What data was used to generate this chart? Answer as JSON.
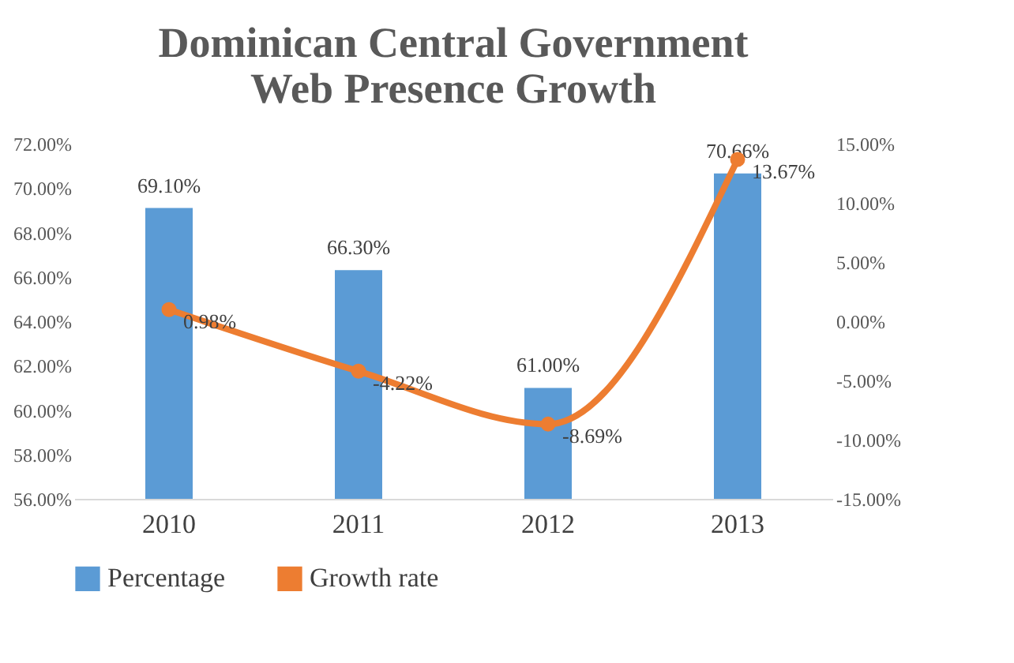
{
  "chart_data": {
    "type": "line",
    "title": "Dominican Central Government Web Presence Growth",
    "categories": [
      "2010",
      "2011",
      "2012",
      "2013"
    ],
    "series": [
      {
        "name": "Percentage",
        "type": "bar",
        "color": "#5b9bd5",
        "values": [
          69.1,
          66.3,
          61.0,
          70.66
        ],
        "value_labels": [
          "69.10%",
          "66.30%",
          "61.00%",
          "70.66%"
        ]
      },
      {
        "name": "Growth rate",
        "axis": "y2",
        "color": "#ed7d31",
        "marker": "circle",
        "line_style": "solid",
        "values": [
          0.98,
          -4.22,
          -8.69,
          13.67
        ],
        "value_labels": [
          "0.98%",
          "-4.22%",
          "-8.69%",
          "13.67%"
        ]
      }
    ],
    "ylim": [
      56,
      72
    ],
    "yticks": [
      {
        "value": 56,
        "label": "56.00%"
      },
      {
        "value": 58,
        "label": "58.00%"
      },
      {
        "value": 60,
        "label": "60.00%"
      },
      {
        "value": 62,
        "label": "62.00%"
      },
      {
        "value": 64,
        "label": "64.00%"
      },
      {
        "value": 66,
        "label": "66.00%"
      },
      {
        "value": 68,
        "label": "68.00%"
      },
      {
        "value": 70,
        "label": "70.00%"
      },
      {
        "value": 72,
        "label": "72.00%"
      }
    ],
    "y2lim": [
      -15,
      15
    ],
    "y2ticks": [
      {
        "value": -15,
        "label": "-15.00%"
      },
      {
        "value": -10,
        "label": "-10.00%"
      },
      {
        "value": -5,
        "label": "-5.00%"
      },
      {
        "value": 0,
        "label": "0.00%"
      },
      {
        "value": 5,
        "label": "5.00%"
      },
      {
        "value": 10,
        "label": "10.00%"
      },
      {
        "value": 15,
        "label": "15.00%"
      }
    ],
    "grid": false,
    "legend": "bottom"
  }
}
